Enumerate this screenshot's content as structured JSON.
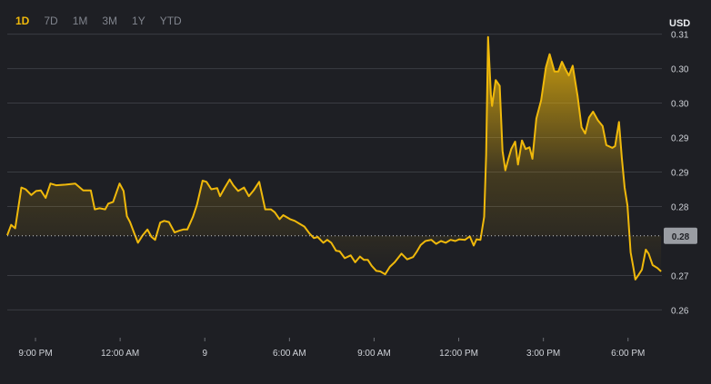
{
  "range_tabs": [
    "1D",
    "7D",
    "1M",
    "3M",
    "1Y",
    "YTD"
  ],
  "active_range": "1D",
  "currency": "USD",
  "colors": {
    "line": "#f0b90b",
    "background": "#1e1f24",
    "grid": "#3a3c42",
    "badge": "#9a9da3"
  },
  "chart_data": {
    "type": "area",
    "ylabel": "USD",
    "y_ticks": [
      {
        "value": 0.3105,
        "label": "0.31"
      },
      {
        "value": 0.3045,
        "label": "0.30"
      },
      {
        "value": 0.2985,
        "label": "0.30"
      },
      {
        "value": 0.2925,
        "label": "0.29"
      },
      {
        "value": 0.2865,
        "label": "0.29"
      },
      {
        "value": 0.2805,
        "label": "0.28"
      },
      {
        "value": 0.2685,
        "label": "0.27"
      },
      {
        "value": 0.2625,
        "label": "0.26"
      }
    ],
    "x_ticks": [
      {
        "value": 21,
        "label": "9:00 PM"
      },
      {
        "value": 24,
        "label": "12:00 AM"
      },
      {
        "value": 27,
        "label": "9"
      },
      {
        "value": 30,
        "label": "6:00 AM"
      },
      {
        "value": 33,
        "label": "9:00 AM"
      },
      {
        "value": 36,
        "label": "12:00 PM"
      },
      {
        "value": 39,
        "label": "3:00 PM"
      },
      {
        "value": 42,
        "label": "6:00 PM"
      }
    ],
    "xlim": [
      20.0,
      43.2
    ],
    "ylim": [
      0.2583,
      0.3117
    ],
    "current_price": {
      "value": 0.2754,
      "label": "0.28"
    },
    "grid": true,
    "series": [
      {
        "x": [
          20.0,
          20.14,
          20.28,
          20.5,
          20.65,
          20.85,
          21.02,
          21.19,
          21.36,
          21.53,
          21.73,
          22.07,
          22.41,
          22.69,
          22.96,
          23.1,
          23.27,
          23.47,
          23.58,
          23.75,
          23.98,
          24.12,
          24.24,
          24.35,
          24.49,
          24.63,
          24.8,
          24.97,
          25.11,
          25.24,
          25.42,
          25.56,
          25.73,
          25.93,
          26.1,
          26.24,
          26.38,
          26.58,
          26.72,
          26.92,
          27.06,
          27.23,
          27.44,
          27.54,
          27.71,
          27.88,
          28.01,
          28.18,
          28.39,
          28.56,
          28.73,
          28.93,
          29.14,
          29.34,
          29.48,
          29.65,
          29.78,
          30.02,
          30.19,
          30.36,
          30.53,
          30.71,
          30.87,
          31.0,
          31.2,
          31.34,
          31.48,
          31.65,
          31.78,
          31.96,
          32.17,
          32.33,
          32.5,
          32.64,
          32.78,
          32.91,
          33.08,
          33.22,
          33.39,
          33.56,
          33.73,
          33.97,
          34.17,
          34.38,
          34.52,
          34.65,
          34.82,
          35.03,
          35.2,
          35.37,
          35.54,
          35.71,
          35.88,
          36.02,
          36.22,
          36.39,
          36.53,
          36.63,
          36.77,
          36.9,
          36.97,
          37.04,
          37.14,
          37.18,
          37.31,
          37.45,
          37.55,
          37.65,
          37.76,
          37.86,
          38.0,
          38.1,
          38.24,
          38.37,
          38.51,
          38.61,
          38.75,
          38.92,
          39.09,
          39.22,
          39.39,
          39.53,
          39.66,
          39.77,
          39.9,
          40.04,
          40.21,
          40.35,
          40.48,
          40.62,
          40.76,
          40.93,
          41.1,
          41.23,
          41.44,
          41.54,
          41.68,
          41.78,
          41.88,
          41.98,
          42.09,
          42.19,
          42.26,
          42.36,
          42.49,
          42.63,
          42.73,
          42.87,
          43.04,
          43.17
        ],
        "y": [
          0.2755,
          0.2773,
          0.2767,
          0.2838,
          0.2835,
          0.2825,
          0.2832,
          0.2833,
          0.282,
          0.2845,
          0.2842,
          0.2843,
          0.2845,
          0.2833,
          0.2833,
          0.28,
          0.2802,
          0.28,
          0.281,
          0.2813,
          0.2845,
          0.2832,
          0.2788,
          0.2778,
          0.276,
          0.2742,
          0.2755,
          0.2765,
          0.2752,
          0.2747,
          0.2777,
          0.278,
          0.2778,
          0.276,
          0.2763,
          0.2765,
          0.2765,
          0.2787,
          0.2808,
          0.285,
          0.2848,
          0.2835,
          0.2837,
          0.2823,
          0.2838,
          0.2852,
          0.2842,
          0.2832,
          0.2838,
          0.2823,
          0.2833,
          0.2848,
          0.28,
          0.28,
          0.2795,
          0.2783,
          0.279,
          0.2783,
          0.278,
          0.2775,
          0.277,
          0.2758,
          0.275,
          0.2752,
          0.2742,
          0.2747,
          0.2742,
          0.2728,
          0.2727,
          0.2715,
          0.272,
          0.2708,
          0.2718,
          0.2712,
          0.2712,
          0.2702,
          0.2693,
          0.2692,
          0.2687,
          0.27,
          0.2708,
          0.2723,
          0.2713,
          0.2717,
          0.2727,
          0.2738,
          0.2745,
          0.2747,
          0.274,
          0.2745,
          0.2742,
          0.2747,
          0.2745,
          0.2748,
          0.2747,
          0.2753,
          0.2737,
          0.2748,
          0.2747,
          0.2787,
          0.2895,
          0.31,
          0.3,
          0.298,
          0.3025,
          0.3015,
          0.2902,
          0.2868,
          0.2888,
          0.2905,
          0.2918,
          0.2878,
          0.292,
          0.2905,
          0.2908,
          0.2888,
          0.2958,
          0.299,
          0.3047,
          0.307,
          0.304,
          0.304,
          0.3057,
          0.3045,
          0.3033,
          0.305,
          0.2998,
          0.2943,
          0.2932,
          0.296,
          0.297,
          0.2955,
          0.2945,
          0.2912,
          0.2907,
          0.291,
          0.2952,
          0.289,
          0.2838,
          0.2807,
          0.2725,
          0.2698,
          0.2678,
          0.2685,
          0.2695,
          0.273,
          0.2723,
          0.2703,
          0.2698,
          0.2692
        ]
      }
    ]
  }
}
